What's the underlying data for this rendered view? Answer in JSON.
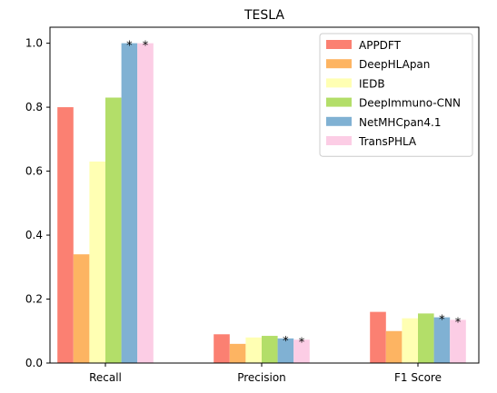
{
  "chart_data": {
    "type": "bar",
    "title": "TESLA",
    "xlabel": "",
    "ylabel": "",
    "categories": [
      "Recall",
      "Precision",
      "F1 Score"
    ],
    "ylim": [
      0,
      1.05
    ],
    "yticks": [
      0.0,
      0.2,
      0.4,
      0.6,
      0.8,
      1.0
    ],
    "ytick_labels": [
      "0.0",
      "0.2",
      "0.4",
      "0.6",
      "0.8",
      "1.0"
    ],
    "legend_position": "top-right",
    "grid": false,
    "series": [
      {
        "name": "APPDFT",
        "color": "#fb8072",
        "values": [
          0.8,
          0.09,
          0.16
        ],
        "marks": [
          "",
          "",
          ""
        ]
      },
      {
        "name": "DeepHLApan",
        "color": "#fdb462",
        "values": [
          0.34,
          0.06,
          0.1
        ],
        "marks": [
          "",
          "",
          ""
        ]
      },
      {
        "name": "IEDB",
        "color": "#ffffb3",
        "values": [
          0.63,
          0.08,
          0.14
        ],
        "marks": [
          "",
          "",
          ""
        ]
      },
      {
        "name": "DeepImmuno-CNN",
        "color": "#b3de69",
        "values": [
          0.83,
          0.085,
          0.155
        ],
        "marks": [
          "",
          "",
          ""
        ]
      },
      {
        "name": "NetMHCpan4.1",
        "color": "#80b1d3",
        "values": [
          1.0,
          0.077,
          0.143
        ],
        "marks": [
          "*",
          "*",
          "*"
        ]
      },
      {
        "name": "TransPHLA",
        "color": "#fccde5",
        "values": [
          1.0,
          0.073,
          0.135
        ],
        "marks": [
          "*",
          "*",
          "*"
        ]
      }
    ]
  }
}
